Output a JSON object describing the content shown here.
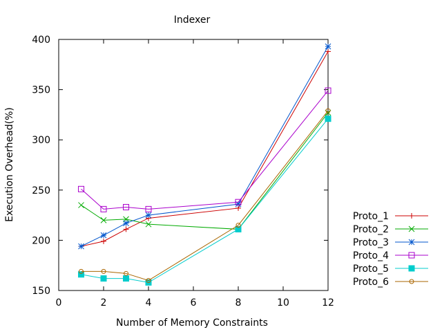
{
  "chart_data": {
    "type": "line",
    "title": "Indexer",
    "xlabel": "Number of Memory Constraints",
    "ylabel": "Execution Overhead(%)",
    "xlim": [
      0,
      12
    ],
    "ylim": [
      150,
      400
    ],
    "xticks": [
      0,
      2,
      4,
      6,
      8,
      10,
      12
    ],
    "yticks": [
      150,
      200,
      250,
      300,
      350,
      400
    ],
    "grid": false,
    "legend_position": "right",
    "x": [
      1,
      2,
      3,
      4,
      8,
      12
    ],
    "series": [
      {
        "name": "Proto_1",
        "color": "#cc0000",
        "marker": "plus",
        "values": [
          194,
          199,
          211,
          222,
          232,
          388
        ]
      },
      {
        "name": "Proto_2",
        "color": "#00aa00",
        "marker": "cross",
        "values": [
          235,
          220,
          221,
          216,
          211,
          327
        ]
      },
      {
        "name": "Proto_3",
        "color": "#0055cc",
        "marker": "star",
        "values": [
          194,
          205,
          217,
          225,
          236,
          393
        ]
      },
      {
        "name": "Proto_4",
        "color": "#aa00cc",
        "marker": "square-open",
        "values": [
          251,
          231,
          233,
          231,
          238,
          349
        ]
      },
      {
        "name": "Proto_5",
        "color": "#00cccc",
        "marker": "square-filled",
        "values": [
          166,
          162,
          162,
          158,
          211,
          321
        ]
      },
      {
        "name": "Proto_6",
        "color": "#aa6600",
        "marker": "circle-open",
        "values": [
          169,
          169,
          167,
          160,
          215,
          329
        ]
      }
    ]
  }
}
